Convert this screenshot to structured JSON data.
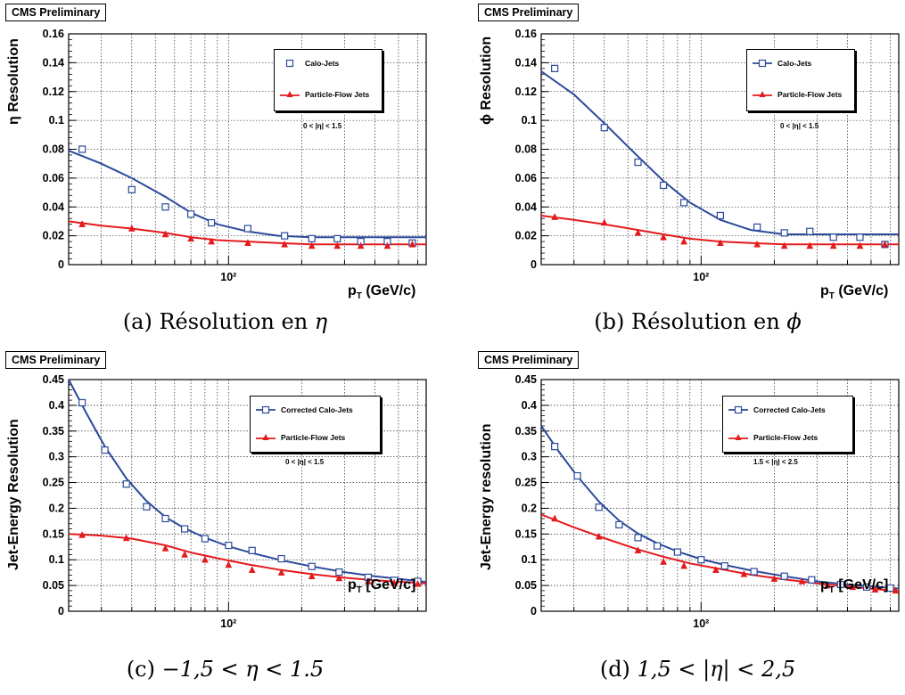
{
  "colors": {
    "calo": "#2b4a9b",
    "pf": "#e41a1c",
    "grid": "#000000"
  },
  "panels": [
    {
      "badge": "CMS Preliminary",
      "ylabel": "η Resolution",
      "xlabel_main": "p",
      "xlabel_sub": "T",
      "xlabel_unit": " (GeV/c)",
      "caption_prefix": "(a) Résolution en ",
      "caption_math": "η",
      "eta_range": "0 < |η| < 1.5",
      "legend": {
        "calo": "Calo-Jets",
        "pf": "Particle-Flow Jets"
      },
      "calo_line": false,
      "chart_data": {
        "type": "scatter",
        "xscale": "log",
        "xlim": [
          22,
          650
        ],
        "ylim": [
          0,
          0.16
        ],
        "y_ticks": [
          "0",
          "0.02",
          "0.04",
          "0.06",
          "0.08",
          "0.1",
          "0.12",
          "0.14",
          "0.16"
        ],
        "x_tick_label": "10²",
        "series": [
          {
            "name": "Calo-Jets",
            "marker": "open-square",
            "x": [
              25,
              40,
              55,
              70,
              85,
              120,
              170,
              220,
              280,
              350,
              450,
              570
            ],
            "y": [
              0.08,
              0.052,
              0.04,
              0.035,
              0.029,
              0.025,
              0.02,
              0.018,
              0.018,
              0.016,
              0.016,
              0.015
            ]
          },
          {
            "name": "Particle-Flow Jets",
            "marker": "filled-triangle",
            "x": [
              25,
              40,
              55,
              70,
              85,
              120,
              170,
              220,
              280,
              350,
              450,
              570
            ],
            "y": [
              0.028,
              0.025,
              0.021,
              0.018,
              0.016,
              0.015,
              0.014,
              0.013,
              0.013,
              0.013,
              0.013,
              0.014
            ]
          }
        ],
        "fits": [
          {
            "series": "Calo-Jets",
            "x": [
              22,
              30,
              40,
              55,
              70,
              90,
              120,
              160,
              220,
              300,
              400,
              650
            ],
            "y": [
              0.079,
              0.07,
              0.06,
              0.047,
              0.036,
              0.028,
              0.023,
              0.02,
              0.019,
              0.019,
              0.019,
              0.019
            ]
          },
          {
            "series": "Particle-Flow Jets",
            "x": [
              22,
              30,
              40,
              55,
              70,
              90,
              120,
              160,
              220,
              300,
              400,
              650
            ],
            "y": [
              0.03,
              0.027,
              0.025,
              0.022,
              0.019,
              0.017,
              0.016,
              0.015,
              0.014,
              0.014,
              0.014,
              0.014
            ]
          }
        ]
      }
    },
    {
      "badge": "CMS Preliminary",
      "ylabel": "ϕ Resolution",
      "xlabel_main": "p",
      "xlabel_sub": "T",
      "xlabel_unit": " (GeV/c)",
      "caption_prefix": "(b) Résolution en ",
      "caption_math": "ϕ",
      "eta_range": "0 < |η| < 1.5",
      "legend": {
        "calo": "Calo-Jets",
        "pf": "Particle-Flow Jets"
      },
      "calo_line": true,
      "chart_data": {
        "type": "scatter",
        "xscale": "log",
        "xlim": [
          22,
          650
        ],
        "ylim": [
          0,
          0.16
        ],
        "y_ticks": [
          "0",
          "0.02",
          "0.04",
          "0.06",
          "0.08",
          "0.1",
          "0.12",
          "0.14",
          "0.16"
        ],
        "x_tick_label": "10²",
        "series": [
          {
            "name": "Calo-Jets",
            "marker": "open-square",
            "x": [
              25,
              40,
              55,
              70,
              85,
              120,
              170,
              220,
              280,
              350,
              450,
              570
            ],
            "y": [
              0.136,
              0.095,
              0.071,
              0.055,
              0.043,
              0.034,
              0.026,
              0.022,
              0.023,
              0.019,
              0.019,
              0.014
            ]
          },
          {
            "name": "Particle-Flow Jets",
            "marker": "filled-triangle",
            "x": [
              25,
              40,
              55,
              70,
              85,
              120,
              170,
              220,
              280,
              350,
              450,
              570
            ],
            "y": [
              0.033,
              0.029,
              0.022,
              0.019,
              0.016,
              0.015,
              0.014,
              0.013,
              0.013,
              0.013,
              0.013,
              0.014
            ]
          }
        ],
        "fits": [
          {
            "series": "Calo-Jets",
            "x": [
              22,
              30,
              40,
              55,
              70,
              90,
              120,
              160,
              220,
              300,
              400,
              650
            ],
            "y": [
              0.134,
              0.118,
              0.098,
              0.075,
              0.058,
              0.043,
              0.031,
              0.024,
              0.021,
              0.021,
              0.021,
              0.021
            ]
          },
          {
            "series": "Particle-Flow Jets",
            "x": [
              22,
              30,
              40,
              55,
              70,
              90,
              120,
              160,
              220,
              300,
              400,
              650
            ],
            "y": [
              0.034,
              0.031,
              0.028,
              0.024,
              0.021,
              0.018,
              0.016,
              0.015,
              0.014,
              0.014,
              0.014,
              0.014
            ]
          }
        ]
      }
    },
    {
      "badge": "CMS Preliminary",
      "ylabel": "Jet-Energy Resolution",
      "xlabel_main": "p",
      "xlabel_sub": "T",
      "xlabel_unit": " [GeV/c]",
      "caption_prefix": "(c) ",
      "caption_math": "−1,5 < η < 1.5",
      "eta_range": "0 < |η| < 1.5",
      "legend": {
        "calo": "Corrected Calo-Jets",
        "pf": "Particle-Flow Jets"
      },
      "calo_line": true,
      "chart_data": {
        "type": "scatter",
        "xscale": "log",
        "xlim": [
          22,
          650
        ],
        "ylim": [
          0,
          0.45
        ],
        "y_ticks": [
          "0",
          "0.05",
          "0.1",
          "0.15",
          "0.2",
          "0.25",
          "0.3",
          "0.35",
          "0.4",
          "0.45"
        ],
        "x_tick_label": "10²",
        "series": [
          {
            "name": "Corrected Calo-Jets",
            "marker": "open-square",
            "x": [
              25,
              31,
              38,
              46,
              55,
              66,
              80,
              100,
              125,
              165,
              220,
              285,
              375,
              480,
              600
            ],
            "y": [
              0.405,
              0.313,
              0.247,
              0.203,
              0.18,
              0.16,
              0.141,
              0.128,
              0.118,
              0.102,
              0.087,
              0.076,
              0.066,
              0.06,
              0.058
            ]
          },
          {
            "name": "Particle-Flow Jets",
            "marker": "filled-triangle",
            "x": [
              25,
              38,
              55,
              66,
              80,
              100,
              125,
              165,
              220,
              285,
              375,
              480,
              600
            ],
            "y": [
              0.148,
              0.142,
              0.122,
              0.11,
              0.1,
              0.09,
              0.08,
              0.075,
              0.068,
              0.064,
              0.058,
              0.055,
              0.053
            ]
          }
        ],
        "fits": [
          {
            "series": "Corrected Calo-Jets",
            "x": [
              22,
              26,
              31,
              38,
              46,
              55,
              66,
              80,
              100,
              125,
              165,
              220,
              300,
              400,
              650
            ],
            "y": [
              0.45,
              0.385,
              0.32,
              0.258,
              0.214,
              0.183,
              0.161,
              0.143,
              0.126,
              0.113,
              0.099,
              0.087,
              0.076,
              0.068,
              0.057
            ]
          },
          {
            "series": "Particle-Flow Jets",
            "x": [
              22,
              30,
              40,
              55,
              70,
              90,
              120,
              160,
              220,
              300,
              400,
              650
            ],
            "y": [
              0.15,
              0.147,
              0.141,
              0.128,
              0.114,
              0.103,
              0.091,
              0.081,
              0.072,
              0.065,
              0.06,
              0.054
            ]
          }
        ]
      }
    },
    {
      "badge": "CMS Preliminary",
      "ylabel": "Jet-Energy resolution",
      "xlabel_main": "p",
      "xlabel_sub": "T",
      "xlabel_unit": " [GeV/c]",
      "caption_prefix": "(d) ",
      "caption_math": "1,5 < |η| < 2,5",
      "eta_range": "1.5 < |η| < 2.5",
      "legend": {
        "calo": "Corrected Calo-Jets",
        "pf": "Particle-Flow Jets"
      },
      "calo_line": true,
      "chart_data": {
        "type": "scatter",
        "xscale": "log",
        "xlim": [
          22,
          650
        ],
        "ylim": [
          0,
          0.45
        ],
        "y_ticks": [
          "0",
          "0.05",
          "0.1",
          "0.15",
          "0.2",
          "0.25",
          "0.3",
          "0.35",
          "0.4",
          "0.45"
        ],
        "x_tick_label": "10²",
        "series": [
          {
            "name": "Corrected Calo-Jets",
            "marker": "open-square",
            "x": [
              25,
              31,
              38,
              46,
              55,
              66,
              80,
              100,
              125,
              165,
              220,
              285,
              375,
              480,
              600
            ],
            "y": [
              0.32,
              0.263,
              0.202,
              0.168,
              0.143,
              0.127,
              0.115,
              0.1,
              0.088,
              0.077,
              0.068,
              0.061,
              0.052,
              0.047,
              0.045
            ]
          },
          {
            "name": "Particle-Flow Jets",
            "marker": "filled-triangle",
            "x": [
              25,
              38,
              55,
              70,
              85,
              115,
              150,
              200,
              260,
              330,
              420,
              520,
              630
            ],
            "y": [
              0.18,
              0.145,
              0.118,
              0.096,
              0.088,
              0.08,
              0.072,
              0.063,
              0.058,
              0.05,
              0.047,
              0.042,
              0.04
            ]
          }
        ],
        "fits": [
          {
            "series": "Corrected Calo-Jets",
            "x": [
              22,
              26,
              31,
              38,
              46,
              55,
              66,
              80,
              100,
              125,
              165,
              220,
              300,
              400,
              650
            ],
            "y": [
              0.36,
              0.31,
              0.262,
              0.213,
              0.176,
              0.151,
              0.132,
              0.116,
              0.101,
              0.09,
              0.078,
              0.068,
              0.058,
              0.052,
              0.044
            ]
          },
          {
            "series": "Particle-Flow Jets",
            "x": [
              22,
              30,
              40,
              55,
              70,
              90,
              120,
              160,
              220,
              300,
              400,
              650
            ],
            "y": [
              0.188,
              0.163,
              0.142,
              0.12,
              0.106,
              0.093,
              0.082,
              0.071,
              0.062,
              0.054,
              0.048,
              0.039
            ]
          }
        ]
      }
    }
  ]
}
